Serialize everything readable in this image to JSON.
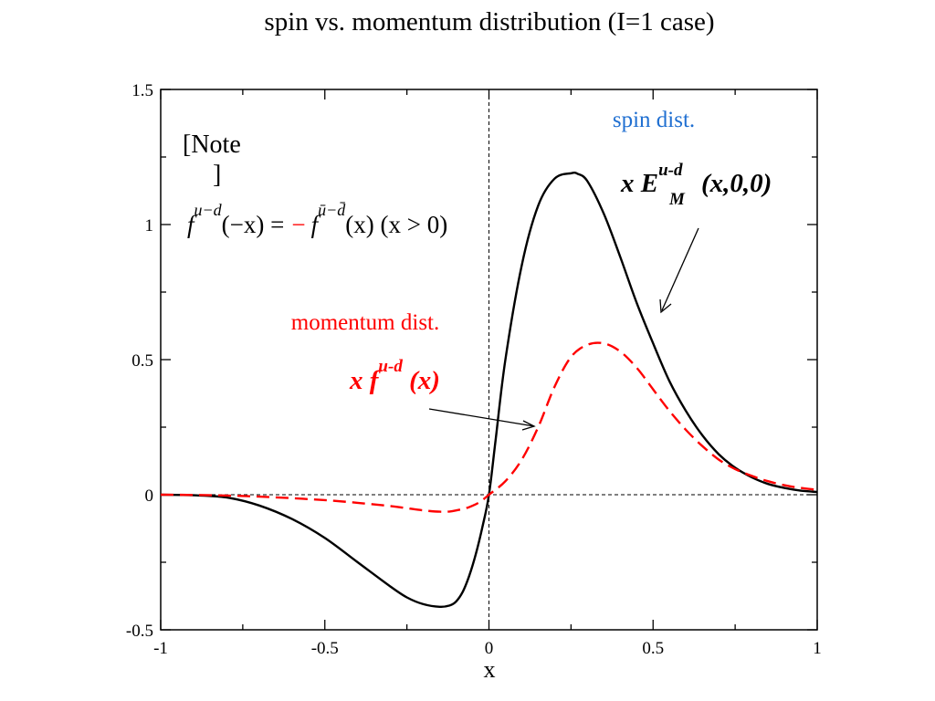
{
  "title": "spin vs. momentum distribution (I=1 case)",
  "chart_data": {
    "type": "line",
    "xlabel": "x",
    "xlim": [
      -1,
      1
    ],
    "ylim": [
      -0.5,
      1.5
    ],
    "x_ticks": [
      "-1",
      "-0.5",
      "0",
      "0.5",
      "1"
    ],
    "y_ticks": [
      "-0.5",
      "0",
      "0.5",
      "1",
      "1.5"
    ],
    "grid": false,
    "series": [
      {
        "name": "spin dist.",
        "label": "x E_M^{u-d}(x,0,0)",
        "color": "#000000",
        "style": "solid",
        "x": [
          -1.0,
          -0.9,
          -0.8,
          -0.7,
          -0.6,
          -0.5,
          -0.4,
          -0.3,
          -0.25,
          -0.2,
          -0.15,
          -0.12,
          -0.1,
          -0.08,
          -0.06,
          -0.04,
          -0.02,
          0.0,
          0.02,
          0.05,
          0.1,
          0.15,
          0.2,
          0.25,
          0.27,
          0.3,
          0.35,
          0.4,
          0.45,
          0.5,
          0.55,
          0.6,
          0.65,
          0.7,
          0.75,
          0.8,
          0.85,
          0.9,
          0.95,
          1.0
        ],
        "y": [
          0.0,
          -0.002,
          -0.01,
          -0.04,
          -0.09,
          -0.16,
          -0.25,
          -0.34,
          -0.38,
          -0.405,
          -0.415,
          -0.41,
          -0.395,
          -0.36,
          -0.3,
          -0.22,
          -0.12,
          0.0,
          0.2,
          0.5,
          0.85,
          1.07,
          1.17,
          1.19,
          1.188,
          1.16,
          1.04,
          0.88,
          0.71,
          0.56,
          0.42,
          0.31,
          0.22,
          0.15,
          0.1,
          0.065,
          0.04,
          0.025,
          0.015,
          0.01
        ]
      },
      {
        "name": "momentum dist.",
        "label": "x f^{u-d}(x)",
        "color": "#ff0000",
        "style": "dashed",
        "x": [
          -1.0,
          -0.9,
          -0.8,
          -0.7,
          -0.6,
          -0.5,
          -0.4,
          -0.3,
          -0.25,
          -0.2,
          -0.15,
          -0.12,
          -0.1,
          -0.07,
          -0.04,
          -0.02,
          0.0,
          0.05,
          0.1,
          0.15,
          0.2,
          0.25,
          0.3,
          0.35,
          0.4,
          0.45,
          0.5,
          0.55,
          0.6,
          0.65,
          0.7,
          0.75,
          0.8,
          0.85,
          0.9,
          0.95,
          1.0
        ],
        "y": [
          0.0,
          -0.001,
          -0.003,
          -0.007,
          -0.013,
          -0.02,
          -0.03,
          -0.042,
          -0.05,
          -0.058,
          -0.063,
          -0.062,
          -0.058,
          -0.05,
          -0.035,
          -0.02,
          0.0,
          0.05,
          0.13,
          0.25,
          0.4,
          0.51,
          0.555,
          0.56,
          0.53,
          0.47,
          0.39,
          0.31,
          0.24,
          0.18,
          0.13,
          0.095,
          0.07,
          0.05,
          0.035,
          0.025,
          0.018
        ]
      }
    ],
    "annotations": {
      "spin_label": "spin dist.",
      "spin_formula": {
        "prefix": "x E",
        "sup": "u-d",
        "sub": "M",
        "suffix": "(x,0,0)"
      },
      "momentum_label": "momentum dist.",
      "momentum_formula": {
        "prefix": "x f",
        "sup": "u-d",
        "suffix": " (x)"
      },
      "note_open": "[Note",
      "note_close": "]",
      "note_formula": {
        "lhs_f": "f",
        "lhs_sup": "u−d",
        "lhs_arg": "(−x) =",
        "minus": "−",
        "rhs_f": "f",
        "rhs_sup": "ū−d̄",
        "rhs_arg": "(x)  (x > 0)"
      }
    },
    "colors": {
      "spin_label": "#1f6fd1",
      "momentum": "#ff0000",
      "spin": "#000000"
    }
  }
}
